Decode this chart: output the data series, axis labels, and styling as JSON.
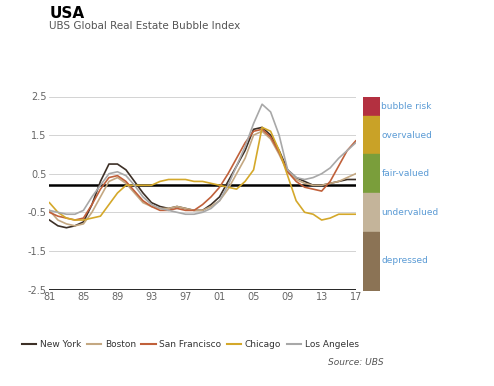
{
  "title_main": "USA",
  "title_sub": "UBS Global Real Estate Bubble Index",
  "source": "Source: UBS",
  "years": [
    1981,
    1982,
    1983,
    1984,
    1985,
    1986,
    1987,
    1988,
    1989,
    1990,
    1991,
    1992,
    1993,
    1994,
    1995,
    1996,
    1997,
    1998,
    1999,
    2000,
    2001,
    2002,
    2003,
    2004,
    2005,
    2006,
    2007,
    2008,
    2009,
    2010,
    2011,
    2012,
    2013,
    2014,
    2015,
    2016,
    2017
  ],
  "new_york": [
    -0.7,
    -0.85,
    -0.9,
    -0.85,
    -0.75,
    -0.3,
    0.3,
    0.75,
    0.75,
    0.6,
    0.3,
    0.0,
    -0.25,
    -0.35,
    -0.4,
    -0.35,
    -0.4,
    -0.45,
    -0.45,
    -0.3,
    -0.1,
    0.3,
    0.7,
    1.1,
    1.65,
    1.7,
    1.5,
    1.1,
    0.6,
    0.4,
    0.3,
    0.2,
    0.2,
    0.25,
    0.3,
    0.35,
    0.35
  ],
  "boston": [
    -0.45,
    -0.7,
    -0.8,
    -0.85,
    -0.8,
    -0.5,
    -0.1,
    0.3,
    0.4,
    0.25,
    0.0,
    -0.25,
    -0.35,
    -0.4,
    -0.4,
    -0.35,
    -0.4,
    -0.45,
    -0.45,
    -0.35,
    -0.2,
    0.1,
    0.5,
    0.9,
    1.5,
    1.6,
    1.4,
    1.0,
    0.55,
    0.35,
    0.25,
    0.2,
    0.2,
    0.25,
    0.3,
    0.4,
    0.5
  ],
  "san_francisco": [
    -0.5,
    -0.6,
    -0.65,
    -0.7,
    -0.65,
    -0.3,
    0.1,
    0.4,
    0.45,
    0.3,
    0.05,
    -0.2,
    -0.35,
    -0.45,
    -0.45,
    -0.4,
    -0.45,
    -0.45,
    -0.3,
    -0.1,
    0.15,
    0.5,
    0.9,
    1.3,
    1.6,
    1.65,
    1.45,
    1.05,
    0.55,
    0.3,
    0.15,
    0.1,
    0.05,
    0.3,
    0.7,
    1.1,
    1.35
  ],
  "chicago": [
    -0.25,
    -0.5,
    -0.65,
    -0.7,
    -0.7,
    -0.65,
    -0.6,
    -0.3,
    0.0,
    0.2,
    0.2,
    0.2,
    0.2,
    0.3,
    0.35,
    0.35,
    0.35,
    0.3,
    0.3,
    0.25,
    0.2,
    0.15,
    0.1,
    0.3,
    0.6,
    1.7,
    1.6,
    1.1,
    0.45,
    -0.2,
    -0.5,
    -0.55,
    -0.7,
    -0.65,
    -0.55,
    -0.55,
    -0.55
  ],
  "los_angeles": [
    -0.45,
    -0.5,
    -0.55,
    -0.55,
    -0.45,
    -0.1,
    0.2,
    0.5,
    0.55,
    0.45,
    0.2,
    -0.1,
    -0.3,
    -0.4,
    -0.45,
    -0.5,
    -0.55,
    -0.55,
    -0.5,
    -0.4,
    -0.2,
    0.2,
    0.7,
    1.2,
    1.8,
    2.3,
    2.1,
    1.5,
    0.6,
    0.4,
    0.35,
    0.4,
    0.5,
    0.65,
    0.9,
    1.1,
    1.3
  ],
  "colors": {
    "new_york": "#3d3027",
    "boston": "#c4a882",
    "san_francisco": "#c0603a",
    "chicago": "#d4a82a",
    "los_angeles": "#a8a8a8"
  },
  "hline_y": 0.2,
  "ylim": [
    -2.5,
    2.5
  ],
  "xlim": [
    1981,
    2017
  ],
  "xtick_years": [
    1981,
    1985,
    1989,
    1993,
    1997,
    2001,
    2005,
    2009,
    2013,
    2017
  ],
  "xtick_labels": [
    "81",
    "85",
    "89",
    "93",
    "97",
    "01",
    "05",
    "09",
    "13",
    "17"
  ],
  "yticks": [
    -2.5,
    -1.5,
    -0.5,
    0.5,
    1.5,
    2.5
  ],
  "ytick_labels": [
    "-2.5",
    "-1.5",
    "-0.5",
    "0.5",
    "1.5",
    "2.5"
  ],
  "risk_band_data": [
    [
      "bubble risk",
      2.0,
      2.5,
      "#b33040"
    ],
    [
      "overvalued",
      1.0,
      2.0,
      "#c9a227"
    ],
    [
      "fair-valued",
      0.0,
      1.0,
      "#7a9e3b"
    ],
    [
      "undervalued",
      -1.0,
      0.0,
      "#c4b49a"
    ],
    [
      "depressed",
      -2.5,
      -1.0,
      "#8b7355"
    ]
  ],
  "risk_label_positions": [
    [
      "bubble risk",
      2.25
    ],
    [
      "overvalued",
      1.5
    ],
    [
      "fair-valued",
      0.5
    ],
    [
      "undervalued",
      -0.5
    ],
    [
      "depressed",
      -1.75
    ]
  ],
  "risk_label_color": "#5b9bd5"
}
